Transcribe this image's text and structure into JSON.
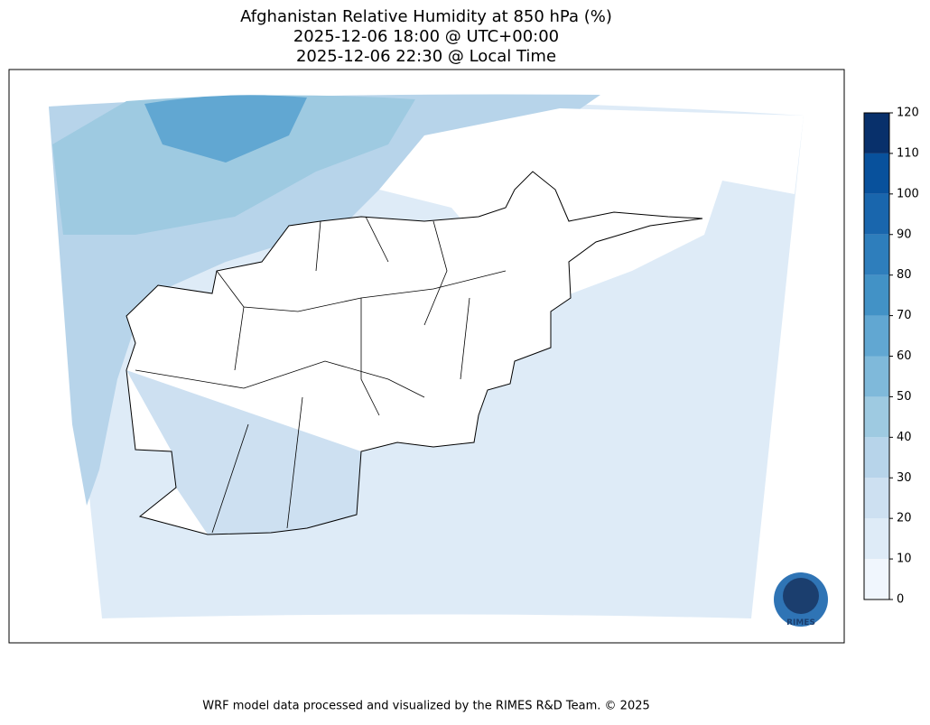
{
  "title": [
    "Afghanistan Relative Humidity at 850 hPa (%)",
    "2025-12-06 18:00 @ UTC+00:00",
    "2025-12-06 22:30 @ Local Time"
  ],
  "colorbar": {
    "ticks": [
      0,
      10,
      20,
      30,
      40,
      50,
      60,
      70,
      80,
      90,
      100,
      110,
      120
    ],
    "colors": [
      "#f0f6fd",
      "#deebf7",
      "#cde0f1",
      "#b7d4ea",
      "#9ecae1",
      "#7fb9da",
      "#61a7d2",
      "#4292c6",
      "#2e7ebc",
      "#1966ad",
      "#08519c",
      "#08306b"
    ]
  },
  "logo": "RIMES",
  "footer": "WRF model data processed and visualized by the RIMES R&D Team. © 2025"
}
